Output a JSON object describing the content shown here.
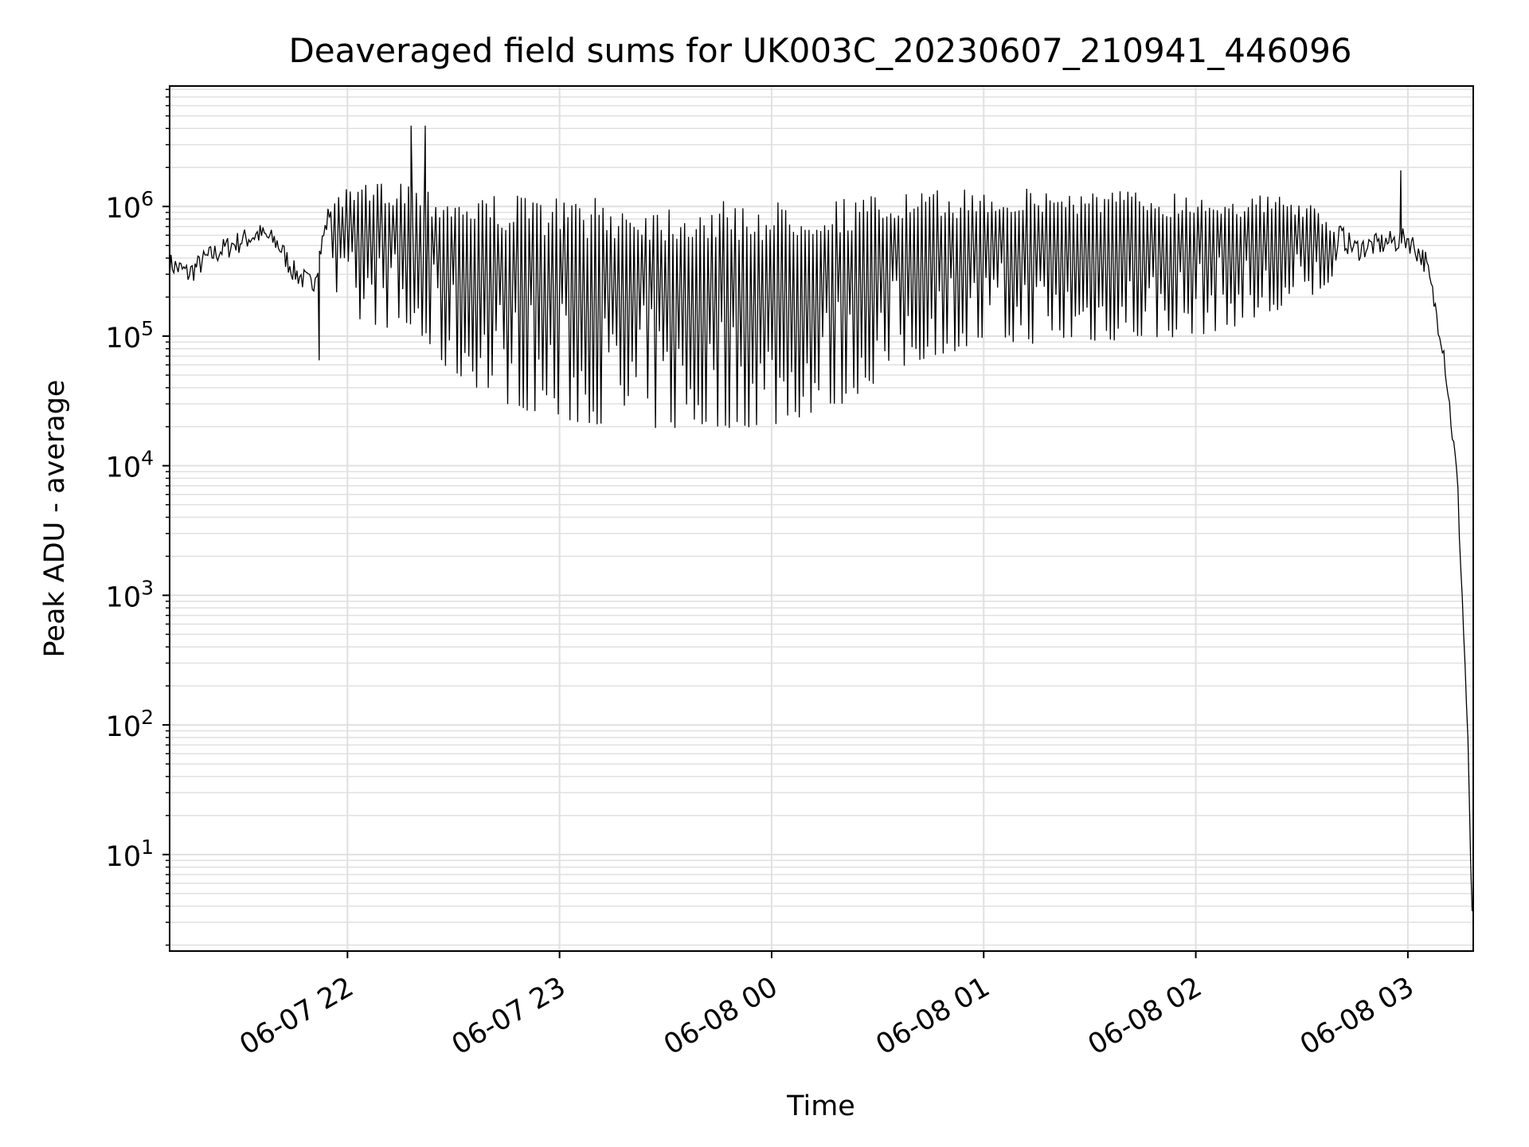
{
  "chart_data": {
    "type": "line",
    "title": "Deaveraged field sums for UK003C_20230607_210941_446096",
    "xlabel": "Time",
    "ylabel": "Peak ADU - average",
    "y_scale": "log",
    "x_range": [
      "06-07 21:09:41",
      "06-08 03:18:30"
    ],
    "ylim": [
      1.8,
      8500000
    ],
    "grid": {
      "major": true,
      "minor_y": true
    },
    "line_color": "#000000",
    "grid_color": "#e0e0e0",
    "x_ticks": [
      {
        "time": "06-07 22:00",
        "label": "06-07 22"
      },
      {
        "time": "06-07 23:00",
        "label": "06-07 23"
      },
      {
        "time": "06-08 00:00",
        "label": "06-08 00"
      },
      {
        "time": "06-08 01:00",
        "label": "06-08 01"
      },
      {
        "time": "06-08 02:00",
        "label": "06-08 02"
      },
      {
        "time": "06-08 03:00",
        "label": "06-08 03"
      }
    ],
    "y_ticks": [
      {
        "value": 10,
        "base": "10",
        "exp": "1"
      },
      {
        "value": 100,
        "base": "10",
        "exp": "2"
      },
      {
        "value": 1000,
        "base": "10",
        "exp": "3"
      },
      {
        "value": 10000,
        "base": "10",
        "exp": "4"
      },
      {
        "value": 100000,
        "base": "10",
        "exp": "5"
      },
      {
        "value": 1000000,
        "base": "10",
        "exp": "6"
      }
    ],
    "series": [
      {
        "points": [
          [
            "06-07 21:10",
            380000
          ],
          [
            "06-07 21:15",
            320000
          ],
          [
            "06-07 21:20",
            420000
          ],
          [
            "06-07 21:25",
            500000
          ],
          [
            "06-07 21:30",
            580000
          ],
          [
            "06-07 21:35",
            650000
          ],
          [
            "06-07 21:40",
            560000
          ],
          [
            "06-07 21:45",
            330000
          ],
          [
            "06-07 21:50",
            260000
          ],
          [
            "06-07 21:55",
            1000000
          ],
          [
            "06-07 22:00",
            1400000
          ],
          [
            "06-07 22:05",
            1500000
          ],
          [
            "06-07 22:10",
            1600000
          ],
          [
            "06-07 22:15",
            1700000
          ],
          [
            "06-07 22:20",
            1500000
          ],
          [
            "06-07 22:30",
            1300000
          ],
          [
            "06-07 22:45",
            1250000
          ],
          [
            "06-07 23:00",
            1200000
          ],
          [
            "06-07 23:30",
            1100000
          ],
          [
            "06-08 00:00",
            1100000
          ],
          [
            "06-08 00:30",
            1250000
          ],
          [
            "06-08 01:00",
            1400000
          ],
          [
            "06-08 01:30",
            1400000
          ],
          [
            "06-08 02:00",
            1300000
          ],
          [
            "06-08 02:30",
            1200000
          ],
          [
            "06-08 02:45",
            500000
          ],
          [
            "06-08 03:00",
            600000
          ],
          [
            "06-08 03:05",
            400000
          ],
          [
            "06-08 03:10",
            90000
          ],
          [
            "06-08 03:14",
            8000
          ],
          [
            "06-08 03:16",
            400
          ],
          [
            "06-08 03:17",
            80
          ],
          [
            "06-08 03:18",
            4
          ]
        ],
        "lower_envelope": [
          [
            "06-07 21:55",
            200000
          ],
          [
            "06-07 22:00",
            130000
          ],
          [
            "06-07 22:10",
            120000
          ],
          [
            "06-07 22:20",
            90000
          ],
          [
            "06-07 22:30",
            50000
          ],
          [
            "06-07 22:45",
            30000
          ],
          [
            "06-07 23:00",
            22000
          ],
          [
            "06-07 23:30",
            19000
          ],
          [
            "06-08 00:00",
            20000
          ],
          [
            "06-08 00:20",
            30000
          ],
          [
            "06-08 00:30",
            45000
          ],
          [
            "06-08 00:45",
            70000
          ],
          [
            "06-08 01:00",
            85000
          ],
          [
            "06-08 01:30",
            90000
          ],
          [
            "06-08 02:00",
            100000
          ],
          [
            "06-08 02:30",
            160000
          ],
          [
            "06-08 02:40",
            300000
          ]
        ],
        "spikes": [
          [
            "06-07 21:52",
            65000
          ],
          [
            "06-07 22:18",
            4200000
          ],
          [
            "06-07 22:22",
            4200000
          ],
          [
            "06-08 02:58",
            1900000
          ]
        ]
      }
    ]
  }
}
